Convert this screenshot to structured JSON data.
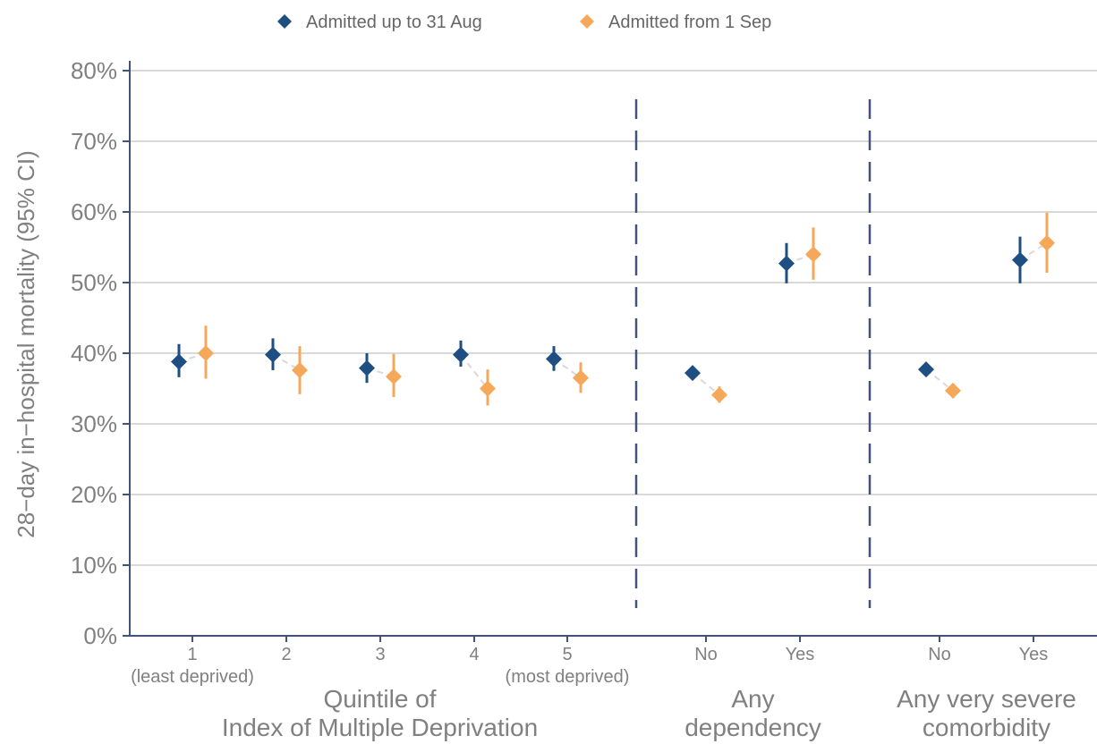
{
  "chart_data": {
    "type": "scatter",
    "ylabel": "28−day in−hospital mortality (95% CI)",
    "ylim": [
      0,
      82
    ],
    "yticks": [
      0,
      10,
      20,
      30,
      40,
      50,
      60,
      70,
      80
    ],
    "ytick_labels": [
      "0%",
      "10%",
      "20%",
      "30%",
      "40%",
      "50%",
      "60%",
      "70%",
      "80%"
    ],
    "grid": "horizontal",
    "legend_position": "top",
    "legend": [
      {
        "label": "Admitted up to 31 Aug",
        "color": "#1f4e82"
      },
      {
        "label": "Admitted from 1 Sep",
        "color": "#f5a85a"
      }
    ],
    "connector_color": "#d9d9d9",
    "separator_color": "#42537a",
    "groups": [
      {
        "title_lines": [
          "Quintile of",
          "Index of Multiple Deprivation"
        ],
        "categories": [
          {
            "label": "1",
            "sublabel": "(least deprived)"
          },
          {
            "label": "2",
            "sublabel": ""
          },
          {
            "label": "3",
            "sublabel": ""
          },
          {
            "label": "4",
            "sublabel": ""
          },
          {
            "label": "5",
            "sublabel": "(most deprived)"
          }
        ]
      },
      {
        "title_lines": [
          "Any",
          "dependency"
        ],
        "categories": [
          {
            "label": "No",
            "sublabel": ""
          },
          {
            "label": "Yes",
            "sublabel": ""
          }
        ]
      },
      {
        "title_lines": [
          "Any very severe",
          "comorbidity"
        ],
        "categories": [
          {
            "label": "No",
            "sublabel": ""
          },
          {
            "label": "Yes",
            "sublabel": ""
          }
        ]
      }
    ],
    "series": [
      {
        "name": "Admitted up to 31 Aug",
        "color": "#1f4e82",
        "points": [
          {
            "y": 38.8,
            "lo": 36.6,
            "hi": 41.3
          },
          {
            "y": 39.8,
            "lo": 37.6,
            "hi": 42.1
          },
          {
            "y": 37.9,
            "lo": 35.8,
            "hi": 40.0
          },
          {
            "y": 39.8,
            "lo": 38.1,
            "hi": 41.8
          },
          {
            "y": 39.2,
            "lo": 37.5,
            "hi": 41.0
          },
          {
            "y": 37.2,
            "lo": 36.5,
            "hi": 38.0
          },
          {
            "y": 52.7,
            "lo": 49.9,
            "hi": 55.6
          },
          {
            "y": 37.7,
            "lo": 37.0,
            "hi": 38.4
          },
          {
            "y": 53.2,
            "lo": 49.9,
            "hi": 56.5
          }
        ]
      },
      {
        "name": "Admitted from 1 Sep",
        "color": "#f5a85a",
        "points": [
          {
            "y": 40.0,
            "lo": 36.4,
            "hi": 43.9
          },
          {
            "y": 37.6,
            "lo": 34.2,
            "hi": 41.0
          },
          {
            "y": 36.7,
            "lo": 33.8,
            "hi": 39.9
          },
          {
            "y": 35.0,
            "lo": 32.6,
            "hi": 37.7
          },
          {
            "y": 36.5,
            "lo": 34.4,
            "hi": 38.7
          },
          {
            "y": 34.1,
            "lo": 33.0,
            "hi": 35.3
          },
          {
            "y": 54.0,
            "lo": 50.4,
            "hi": 57.8
          },
          {
            "y": 34.7,
            "lo": 33.7,
            "hi": 35.7
          },
          {
            "y": 55.6,
            "lo": 51.4,
            "hi": 59.9
          }
        ]
      }
    ]
  }
}
